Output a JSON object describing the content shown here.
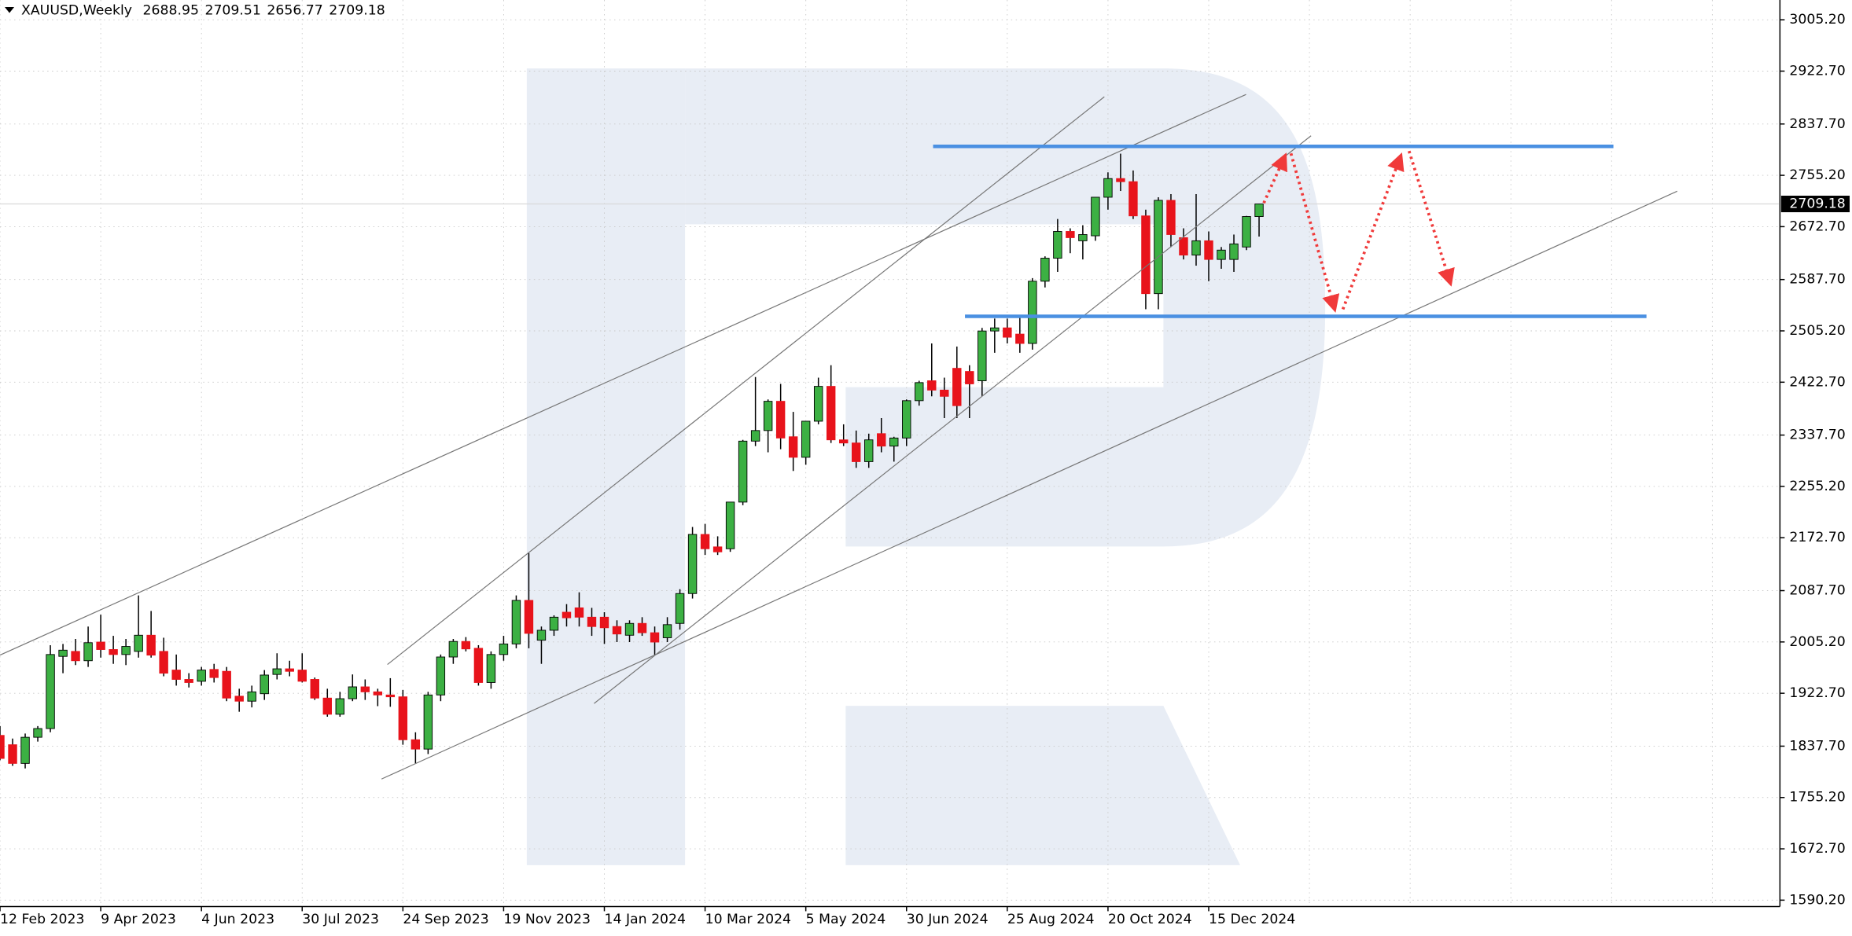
{
  "chart_data": {
    "type": "candlestick",
    "title": "XAUUSD,Weekly",
    "categories": [
      "12 Feb 2023",
      null,
      null,
      null,
      null,
      null,
      null,
      null,
      "9 Apr 2023",
      null,
      null,
      null,
      null,
      null,
      null,
      null,
      "4 Jun 2023",
      null,
      null,
      null,
      null,
      null,
      null,
      null,
      "30 Jul 2023",
      null,
      null,
      null,
      null,
      null,
      null,
      null,
      "24 Sep 2023",
      null,
      null,
      null,
      null,
      null,
      null,
      null,
      "19 Nov 2023",
      null,
      null,
      null,
      null,
      null,
      null,
      null,
      "14 Jan 2024",
      null,
      null,
      null,
      null,
      null,
      null,
      null,
      "10 Mar 2024",
      null,
      null,
      null,
      null,
      null,
      null,
      null,
      "5 May 2024",
      null,
      null,
      null,
      null,
      null,
      null,
      null,
      "30 Jun 2024",
      null,
      null,
      null,
      null,
      null,
      null,
      null,
      "25 Aug 2024",
      null,
      null,
      null,
      null,
      null,
      null,
      null,
      "20 Oct 2024",
      null,
      null,
      null,
      null,
      null,
      null,
      null,
      "15 Dec 2024",
      null,
      null,
      null,
      null
    ],
    "open": [
      1855,
      1840,
      1810,
      1852,
      1866,
      1982,
      1990,
      1975,
      2005,
      1993,
      1985,
      1990,
      2016,
      1990,
      1960,
      1945,
      1942,
      1961,
      1958,
      1918,
      1910,
      1922,
      1953,
      1962,
      1960,
      1945,
      1915,
      1889,
      1914,
      1933,
      1925,
      1920,
      1917,
      1848,
      1833,
      1920,
      1981,
      2006,
      1995,
      1940,
      1985,
      2002,
      2072,
      2008,
      2024,
      2053,
      2060,
      2045,
      2045,
      2030,
      2016,
      2035,
      2020,
      2012,
      2035,
      2083,
      2178,
      2158,
      2155,
      2230,
      2328,
      2345,
      2392,
      2335,
      2302,
      2360,
      2416,
      2330,
      2325,
      2295,
      2340,
      2320,
      2333,
      2393,
      2425,
      2410,
      2445,
      2440,
      2425,
      2505,
      2510,
      2500,
      2485,
      2585,
      2622,
      2665,
      2650,
      2658,
      2720,
      2750,
      2745,
      2690,
      2565,
      2715,
      2655,
      2627,
      2650,
      2620,
      2620,
      2640,
      2688.95
    ],
    "high": [
      1870,
      1850,
      1858,
      1870,
      2000,
      2002,
      2010,
      2030,
      2049,
      2015,
      2010,
      2080,
      2055,
      2012,
      1985,
      1955,
      1965,
      1970,
      1965,
      1930,
      1935,
      1960,
      1987,
      1975,
      1987,
      1948,
      1930,
      1925,
      1953,
      1945,
      1930,
      1947,
      1928,
      1860,
      1925,
      1985,
      2010,
      2013,
      2000,
      1990,
      2015,
      2080,
      2148,
      2030,
      2048,
      2066,
      2085,
      2060,
      2053,
      2040,
      2040,
      2045,
      2030,
      2045,
      2090,
      2190,
      2195,
      2175,
      2230,
      2330,
      2431,
      2395,
      2420,
      2375,
      2360,
      2430,
      2450,
      2355,
      2345,
      2340,
      2365,
      2335,
      2395,
      2425,
      2485,
      2430,
      2480,
      2450,
      2510,
      2525,
      2525,
      2530,
      2590,
      2625,
      2685,
      2670,
      2675,
      2720,
      2760,
      2790,
      2763,
      2700,
      2720,
      2725,
      2670,
      2725,
      2665,
      2640,
      2660,
      2690,
      2709.51
    ],
    "low": [
      1815,
      1806,
      1802,
      1845,
      1860,
      1955,
      1968,
      1965,
      1980,
      1970,
      1968,
      1980,
      1980,
      1950,
      1935,
      1932,
      1935,
      1940,
      1910,
      1893,
      1900,
      1912,
      1945,
      1950,
      1940,
      1912,
      1885,
      1885,
      1910,
      1912,
      1902,
      1901,
      1840,
      1810,
      1825,
      1910,
      1970,
      1990,
      1935,
      1930,
      1975,
      1995,
      1995,
      1970,
      2015,
      2030,
      2030,
      2015,
      2002,
      2005,
      2005,
      2015,
      1984,
      2005,
      2025,
      2075,
      2145,
      2145,
      2150,
      2225,
      2320,
      2310,
      2315,
      2280,
      2290,
      2355,
      2325,
      2320,
      2285,
      2285,
      2310,
      2295,
      2320,
      2385,
      2400,
      2365,
      2365,
      2365,
      2400,
      2470,
      2485,
      2470,
      2475,
      2575,
      2600,
      2630,
      2620,
      2650,
      2700,
      2730,
      2685,
      2540,
      2540,
      2640,
      2620,
      2610,
      2585,
      2605,
      2600,
      2635,
      2656.77
    ],
    "close": [
      1818,
      1810,
      1852,
      1866,
      1985,
      1992,
      1975,
      2004,
      1993,
      1985,
      1998,
      2016,
      1984,
      1955,
      1945,
      1940,
      1960,
      1948,
      1915,
      1910,
      1925,
      1952,
      1962,
      1958,
      1942,
      1915,
      1889,
      1914,
      1933,
      1925,
      1920,
      1917,
      1848,
      1833,
      1920,
      1981,
      2006,
      1994,
      1940,
      1985,
      2002,
      2072,
      2019,
      2024,
      2045,
      2044,
      2045,
      2030,
      2028,
      2018,
      2035,
      2020,
      2005,
      2033,
      2083,
      2178,
      2155,
      2150,
      2230,
      2328,
      2345,
      2392,
      2333,
      2302,
      2360,
      2416,
      2330,
      2325,
      2295,
      2330,
      2320,
      2333,
      2393,
      2422,
      2410,
      2400,
      2385,
      2420,
      2505,
      2510,
      2495,
      2485,
      2585,
      2622,
      2665,
      2655,
      2660,
      2720,
      2750,
      2745,
      2690,
      2565,
      2715,
      2660,
      2627,
      2650,
      2620,
      2635,
      2645,
      2689,
      2709.18
    ],
    "up_color": "#3cb043",
    "down_color": "#e8131b",
    "ylim": [
      1580,
      3037
    ],
    "yticks": [
      {
        "value": 3005.2,
        "label": "3005.20"
      },
      {
        "value": 2922.7,
        "label": "2922.70"
      },
      {
        "value": 2837.7,
        "label": "2837.70"
      },
      {
        "value": 2755.2,
        "label": "2755.20"
      },
      {
        "value": 2672.7,
        "label": "2672.70"
      },
      {
        "value": 2587.7,
        "label": "2587.70"
      },
      {
        "value": 2505.2,
        "label": "2505.20"
      },
      {
        "value": 2422.7,
        "label": "2422.70"
      },
      {
        "value": 2337.7,
        "label": "2337.70"
      },
      {
        "value": 2255.2,
        "label": "2255.20"
      },
      {
        "value": 2172.7,
        "label": "2172.70"
      },
      {
        "value": 2087.7,
        "label": "2087.70"
      },
      {
        "value": 2005.2,
        "label": "2005.20"
      },
      {
        "value": 1922.7,
        "label": "1922.70"
      },
      {
        "value": 1837.7,
        "label": "1837.70"
      },
      {
        "value": 1755.2,
        "label": "1755.20"
      },
      {
        "value": 1672.7,
        "label": "1672.70"
      },
      {
        "value": 1590.2,
        "label": "1590.20"
      }
    ],
    "grid": true
  }
}
